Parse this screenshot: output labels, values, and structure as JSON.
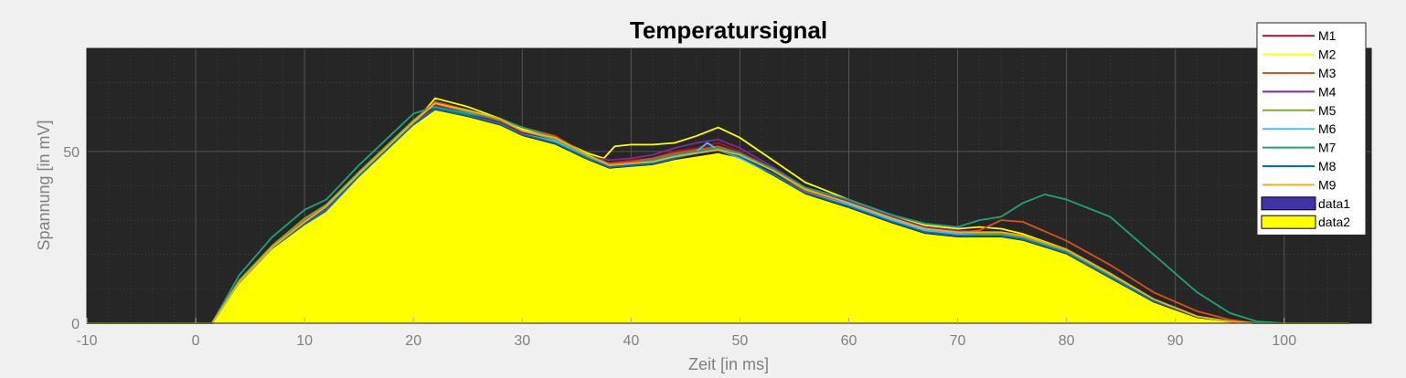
{
  "chart_data": {
    "type": "area",
    "title": "Temperatursignal",
    "xlabel": "Zeit [in ms]",
    "ylabel": "Spannung [in mV]",
    "xlim": [
      -10,
      108
    ],
    "ylim": [
      0,
      80
    ],
    "xticks": [
      -10,
      0,
      10,
      20,
      30,
      40,
      50,
      60,
      70,
      80,
      90,
      100
    ],
    "yticks": [
      0,
      50
    ],
    "grid": true,
    "minor_grid": true,
    "background": "#262626",
    "legend_position": "top-right",
    "series": [
      {
        "name": "M1",
        "color": "#A2142F",
        "kind": "line",
        "x": [
          -10,
          0,
          1.5,
          4,
          7,
          10,
          12,
          15,
          18,
          20,
          22,
          25,
          28,
          30,
          33,
          36,
          38,
          40,
          42,
          44,
          46,
          48,
          50,
          53,
          56,
          60,
          64,
          67,
          70,
          72,
          74,
          76,
          80,
          84,
          88,
          92,
          95,
          97.5,
          100,
          106
        ],
        "y": [
          0,
          0,
          0,
          12,
          22,
          29,
          33,
          43,
          52,
          58,
          63.5,
          61,
          58.5,
          55.5,
          53,
          48.5,
          46.5,
          47.5,
          48,
          50,
          51,
          52.5,
          50,
          45,
          39,
          35,
          30.5,
          27.5,
          27,
          26.5,
          26.5,
          25.5,
          21.5,
          14.5,
          7,
          2,
          0.5,
          0,
          0,
          0
        ]
      },
      {
        "name": "M2",
        "color": "#FFFF00",
        "kind": "line",
        "x": [
          -10,
          0,
          1.5,
          4,
          7,
          10,
          12,
          15,
          18,
          20,
          22,
          25,
          28,
          30,
          33,
          36,
          37.5,
          38.5,
          40,
          42,
          44,
          46,
          48,
          50,
          53,
          56,
          60,
          64,
          67,
          70,
          72,
          74,
          76,
          80,
          84,
          88,
          92,
          95,
          97.5,
          100,
          106
        ],
        "y": [
          0,
          0,
          0,
          12,
          22,
          29,
          33,
          43,
          52,
          58,
          65.5,
          63,
          59.5,
          56.5,
          54,
          49.5,
          48,
          51.5,
          52,
          52,
          52.5,
          54.5,
          57,
          54,
          47.5,
          41,
          36,
          31,
          28.5,
          27.5,
          28,
          27.5,
          26,
          21.5,
          14.5,
          7,
          2,
          0.5,
          0,
          0,
          0
        ]
      },
      {
        "name": "M3",
        "color": "#D95319",
        "kind": "line",
        "x": [
          -10,
          0,
          1.5,
          4,
          7,
          10,
          12,
          15,
          18,
          20,
          22,
          25,
          28,
          30,
          33,
          36,
          38,
          40,
          42,
          44,
          46,
          48,
          50,
          53,
          56,
          60,
          64,
          67,
          70,
          72,
          74,
          76,
          80,
          84,
          88,
          92,
          95,
          97.5,
          100,
          106
        ],
        "y": [
          0,
          0,
          0,
          12,
          22,
          30,
          34,
          44,
          53,
          59,
          64.5,
          62,
          59.5,
          57,
          54.5,
          49,
          46.5,
          47,
          48,
          49.5,
          50.5,
          51.5,
          49.5,
          44.5,
          38.5,
          35,
          30.5,
          27.5,
          26.5,
          27,
          30,
          29.5,
          24,
          17,
          9,
          3.5,
          1,
          0,
          0,
          0
        ]
      },
      {
        "name": "M4",
        "color": "#7E2F8E",
        "kind": "line",
        "x": [
          -10,
          0,
          1.5,
          4,
          7,
          10,
          12,
          15,
          18,
          20,
          22,
          25,
          28,
          30,
          33,
          36,
          38,
          40,
          42,
          44,
          46,
          48,
          50,
          53,
          56,
          60,
          64,
          67,
          70,
          72,
          74,
          76,
          80,
          84,
          88,
          92,
          95,
          97.5,
          100,
          106
        ],
        "y": [
          0,
          0,
          0,
          12,
          22,
          29.5,
          33.5,
          43.5,
          52.5,
          58.5,
          64,
          61.5,
          59,
          56,
          53.5,
          48.5,
          47.5,
          48,
          49,
          51,
          52.5,
          53.5,
          51,
          45.5,
          39.5,
          35.5,
          31,
          28,
          27,
          26.5,
          26.5,
          25.5,
          21.5,
          14.5,
          7,
          2,
          0.5,
          0,
          0,
          0
        ]
      },
      {
        "name": "M5",
        "color": "#77AC30",
        "kind": "line",
        "x": [
          -10,
          0,
          1.5,
          4,
          7,
          10,
          12,
          15,
          18,
          20,
          22,
          25,
          28,
          30,
          33,
          36,
          38,
          40,
          42,
          44,
          46,
          48,
          50,
          53,
          56,
          60,
          64,
          67,
          70,
          72,
          74,
          76,
          80,
          84,
          88,
          92,
          95,
          97.5,
          100,
          106
        ],
        "y": [
          0,
          0,
          0,
          12.5,
          22.5,
          30.5,
          34.5,
          44,
          53,
          59,
          64,
          61.5,
          59,
          56,
          53.5,
          48.5,
          45.5,
          46.5,
          47,
          48.5,
          49.5,
          50.5,
          49,
          44.5,
          39,
          35,
          30.5,
          27.5,
          26.5,
          26,
          26,
          25,
          21,
          14,
          6.5,
          2,
          0.5,
          0,
          0,
          0
        ]
      },
      {
        "name": "M6",
        "color": "#4DBEEE",
        "kind": "line",
        "x": [
          -10,
          0,
          1.5,
          4,
          7,
          10,
          12,
          15,
          18,
          20,
          22,
          25,
          28,
          30,
          33,
          36,
          38,
          40,
          42,
          44,
          46,
          47,
          48,
          50,
          53,
          56,
          60,
          64,
          67,
          70,
          72,
          74,
          76,
          80,
          84,
          88,
          92,
          95,
          97.5,
          100,
          106
        ],
        "y": [
          0,
          0,
          0,
          12,
          22,
          29,
          33,
          43,
          52,
          58,
          62.5,
          60.5,
          58,
          55,
          53,
          48,
          45.5,
          46,
          46.5,
          48,
          50,
          52.5,
          50.5,
          48,
          43.5,
          38,
          34.5,
          30,
          27,
          26,
          25.5,
          25.5,
          24.5,
          20.5,
          13.5,
          6.5,
          2,
          0.5,
          0,
          0,
          0
        ]
      },
      {
        "name": "M7",
        "color": "#22A27A",
        "kind": "line",
        "x": [
          -10,
          0,
          1.5,
          4,
          7,
          10,
          12,
          15,
          18,
          20,
          22,
          25,
          28,
          30,
          33,
          36,
          38,
          40,
          42,
          44,
          46,
          48,
          50,
          53,
          56,
          60,
          64,
          67,
          70,
          72,
          74,
          76,
          78,
          80,
          84,
          88,
          92,
          95,
          97.5,
          100,
          106
        ],
        "y": [
          0,
          0,
          0,
          14,
          25,
          33,
          36,
          46,
          55,
          61,
          63,
          61,
          59.5,
          57,
          54,
          49,
          46,
          46.5,
          47.5,
          49,
          50,
          51,
          49.5,
          45,
          39.5,
          36,
          31.5,
          29,
          28,
          30,
          31,
          35,
          37.5,
          36,
          31,
          20,
          9,
          3,
          0.5,
          0,
          0
        ]
      },
      {
        "name": "M8",
        "color": "#0072BD",
        "kind": "line",
        "x": [
          -10,
          0,
          1.5,
          4,
          7,
          10,
          12,
          15,
          18,
          20,
          22,
          25,
          28,
          30,
          33,
          36,
          38,
          40,
          42,
          44,
          46,
          48,
          50,
          53,
          56,
          60,
          64,
          67,
          70,
          72,
          74,
          76,
          80,
          84,
          88,
          92,
          95,
          97.5,
          100,
          106
        ],
        "y": [
          0,
          0,
          0,
          12,
          22,
          29,
          33,
          43,
          52,
          58,
          62.5,
          60.5,
          58,
          55,
          52.5,
          48,
          45.5,
          46,
          46.5,
          48,
          49.5,
          50.5,
          48.5,
          43.5,
          38,
          34,
          29.5,
          26.5,
          25.5,
          25.5,
          25.5,
          24.5,
          20.5,
          13.5,
          6.5,
          2,
          0.5,
          0,
          0,
          0
        ]
      },
      {
        "name": "M9",
        "color": "#EDB120",
        "kind": "line",
        "x": [
          -10,
          0,
          1.5,
          4,
          7,
          10,
          12,
          15,
          18,
          20,
          22,
          25,
          28,
          30,
          33,
          36,
          38,
          40,
          42,
          44,
          46,
          48,
          50,
          53,
          56,
          60,
          64,
          67,
          70,
          72,
          74,
          76,
          80,
          84,
          88,
          92,
          95,
          97.5,
          100,
          106
        ],
        "y": [
          0,
          0,
          0,
          12,
          22,
          29.5,
          34,
          43.5,
          52.5,
          58.5,
          64,
          62,
          59.5,
          56,
          54,
          49,
          46,
          46.5,
          47,
          48.5,
          49.5,
          50.5,
          49,
          44.5,
          39,
          35,
          30.5,
          27.5,
          26.5,
          26.5,
          26.5,
          25.5,
          21.5,
          14.5,
          7,
          2,
          0.5,
          0,
          0,
          0
        ]
      },
      {
        "name": "data1",
        "color": "#3F33A6",
        "kind": "area",
        "x": [
          -10,
          0,
          1.5,
          4,
          7,
          10,
          12,
          15,
          18,
          20,
          22,
          25,
          28,
          30,
          33,
          36,
          38,
          40,
          42,
          44,
          46,
          48,
          50,
          53,
          56,
          60,
          64,
          67,
          70,
          72,
          74,
          76,
          80,
          84,
          88,
          92,
          95,
          97.5,
          100,
          106
        ],
        "y": [
          0,
          0,
          0,
          11.5,
          21.5,
          28.5,
          32.5,
          42.5,
          51.5,
          57.5,
          62,
          60,
          57.5,
          54.5,
          52,
          47.5,
          45,
          45.5,
          46,
          47.5,
          48.5,
          49.5,
          48,
          43,
          37.5,
          33.5,
          29,
          26,
          25,
          25,
          25,
          24,
          20,
          13,
          6,
          1.5,
          0.3,
          0,
          0,
          0
        ]
      },
      {
        "name": "data2",
        "color": "#FFFF00",
        "kind": "area",
        "x": [
          -10,
          0,
          1.5,
          4,
          7,
          10,
          12,
          15,
          18,
          20,
          22,
          25,
          28,
          30,
          33,
          36,
          38,
          40,
          42,
          44,
          46,
          48,
          50,
          53,
          56,
          60,
          64,
          67,
          70,
          72,
          74,
          76,
          80,
          84,
          88,
          92,
          95,
          97.5,
          100,
          106
        ],
        "y": [
          0,
          0,
          0,
          11.5,
          21.5,
          28.5,
          32.5,
          42.5,
          51.5,
          57.5,
          62,
          60,
          57.5,
          54.5,
          52,
          47.5,
          45,
          45.5,
          46,
          47.5,
          48.5,
          49.5,
          48,
          43,
          37.5,
          33.5,
          29,
          26,
          25,
          25,
          25,
          24,
          20,
          13,
          6,
          1.5,
          0.3,
          0,
          0,
          0
        ]
      }
    ]
  }
}
